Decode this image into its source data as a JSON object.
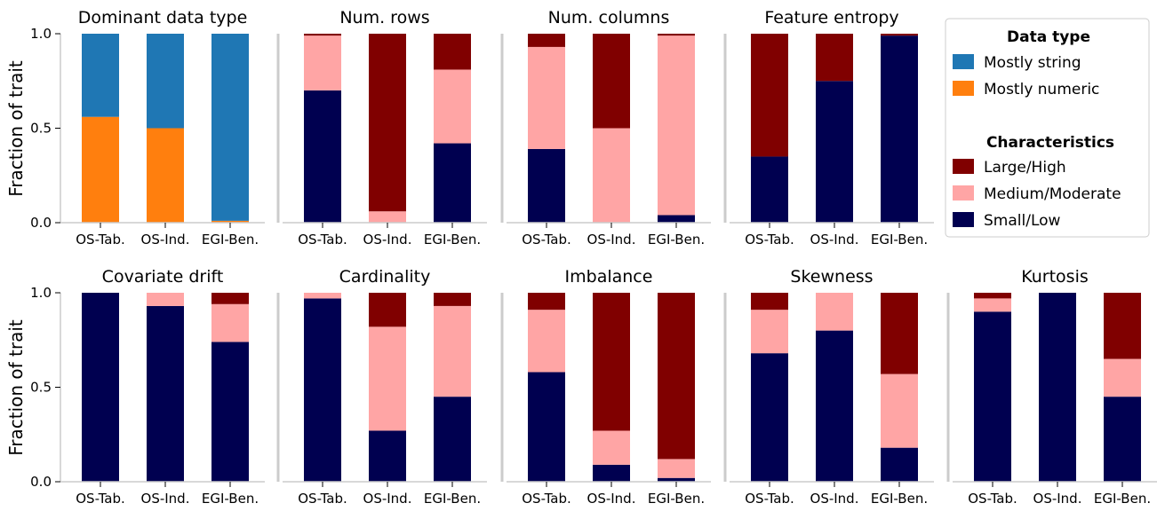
{
  "ylabel": "Fraction of trait",
  "y_ticks": [
    "0.0",
    "0.5",
    "1.0"
  ],
  "legend": {
    "data_type_title": "Data type",
    "data_type_items": [
      {
        "key": "string",
        "label": "Mostly string",
        "color": "#1f77b4"
      },
      {
        "key": "numeric",
        "label": "Mostly numeric",
        "color": "#ff7f0e"
      }
    ],
    "characteristics_title": "Characteristics",
    "characteristics_items": [
      {
        "key": "large",
        "label": "Large/High",
        "color": "#800000"
      },
      {
        "key": "medium",
        "label": "Medium/Moderate",
        "color": "#ffa5a5"
      },
      {
        "key": "small",
        "label": "Small/Low",
        "color": "#000050"
      }
    ]
  },
  "chart_data": [
    {
      "type": "bar",
      "stacked": true,
      "title": "Dominant data type",
      "categories": [
        "OS-Tab.",
        "OS-Ind.",
        "EGI-Ben."
      ],
      "ylim": [
        0,
        1
      ],
      "series": [
        {
          "name": "Mostly numeric",
          "values": [
            0.56,
            0.5,
            0.01
          ]
        },
        {
          "name": "Mostly string",
          "values": [
            0.44,
            0.5,
            0.99
          ]
        }
      ]
    },
    {
      "type": "bar",
      "stacked": true,
      "title": "Num. rows",
      "categories": [
        "OS-Tab.",
        "OS-Ind.",
        "EGI-Ben."
      ],
      "ylim": [
        0,
        1
      ],
      "series": [
        {
          "name": "Small/Low",
          "values": [
            0.7,
            0.0,
            0.42
          ]
        },
        {
          "name": "Medium/Moderate",
          "values": [
            0.29,
            0.06,
            0.39
          ]
        },
        {
          "name": "Large/High",
          "values": [
            0.01,
            0.94,
            0.19
          ]
        }
      ]
    },
    {
      "type": "bar",
      "stacked": true,
      "title": "Num. columns",
      "categories": [
        "OS-Tab.",
        "OS-Ind.",
        "EGI-Ben."
      ],
      "ylim": [
        0,
        1
      ],
      "series": [
        {
          "name": "Small/Low",
          "values": [
            0.39,
            0.0,
            0.04
          ]
        },
        {
          "name": "Medium/Moderate",
          "values": [
            0.54,
            0.5,
            0.95
          ]
        },
        {
          "name": "Large/High",
          "values": [
            0.07,
            0.5,
            0.01
          ]
        }
      ]
    },
    {
      "type": "bar",
      "stacked": true,
      "title": "Feature entropy",
      "categories": [
        "OS-Tab.",
        "OS-Ind.",
        "EGI-Ben."
      ],
      "ylim": [
        0,
        1
      ],
      "series": [
        {
          "name": "Small/Low",
          "values": [
            0.35,
            0.75,
            0.99
          ]
        },
        {
          "name": "Medium/Moderate",
          "values": [
            0.0,
            0.0,
            0.0
          ]
        },
        {
          "name": "Large/High",
          "values": [
            0.65,
            0.25,
            0.01
          ]
        }
      ]
    },
    {
      "type": "bar",
      "stacked": true,
      "title": "Covariate drift",
      "categories": [
        "OS-Tab.",
        "OS-Ind.",
        "EGI-Ben."
      ],
      "ylim": [
        0,
        1
      ],
      "series": [
        {
          "name": "Small/Low",
          "values": [
            1.0,
            0.93,
            0.74
          ]
        },
        {
          "name": "Medium/Moderate",
          "values": [
            0.0,
            0.07,
            0.2
          ]
        },
        {
          "name": "Large/High",
          "values": [
            0.0,
            0.0,
            0.06
          ]
        }
      ]
    },
    {
      "type": "bar",
      "stacked": true,
      "title": "Cardinality",
      "categories": [
        "OS-Tab.",
        "OS-Ind.",
        "EGI-Ben."
      ],
      "ylim": [
        0,
        1
      ],
      "series": [
        {
          "name": "Small/Low",
          "values": [
            0.97,
            0.27,
            0.45
          ]
        },
        {
          "name": "Medium/Moderate",
          "values": [
            0.03,
            0.55,
            0.48
          ]
        },
        {
          "name": "Large/High",
          "values": [
            0.0,
            0.18,
            0.07
          ]
        }
      ]
    },
    {
      "type": "bar",
      "stacked": true,
      "title": "Imbalance",
      "categories": [
        "OS-Tab.",
        "OS-Ind.",
        "EGI-Ben."
      ],
      "ylim": [
        0,
        1
      ],
      "series": [
        {
          "name": "Small/Low",
          "values": [
            0.58,
            0.09,
            0.02
          ]
        },
        {
          "name": "Medium/Moderate",
          "values": [
            0.33,
            0.18,
            0.1
          ]
        },
        {
          "name": "Large/High",
          "values": [
            0.09,
            0.73,
            0.88
          ]
        }
      ]
    },
    {
      "type": "bar",
      "stacked": true,
      "title": "Skewness",
      "categories": [
        "OS-Tab.",
        "OS-Ind.",
        "EGI-Ben."
      ],
      "ylim": [
        0,
        1
      ],
      "series": [
        {
          "name": "Small/Low",
          "values": [
            0.68,
            0.8,
            0.18
          ]
        },
        {
          "name": "Medium/Moderate",
          "values": [
            0.23,
            0.2,
            0.39
          ]
        },
        {
          "name": "Large/High",
          "values": [
            0.09,
            0.0,
            0.43
          ]
        }
      ]
    },
    {
      "type": "bar",
      "stacked": true,
      "title": "Kurtosis",
      "categories": [
        "OS-Tab.",
        "OS-Ind.",
        "EGI-Ben."
      ],
      "ylim": [
        0,
        1
      ],
      "series": [
        {
          "name": "Small/Low",
          "values": [
            0.9,
            1.0,
            0.45
          ]
        },
        {
          "name": "Medium/Moderate",
          "values": [
            0.07,
            0.0,
            0.2
          ]
        },
        {
          "name": "Large/High",
          "values": [
            0.03,
            0.0,
            0.35
          ]
        }
      ]
    }
  ]
}
